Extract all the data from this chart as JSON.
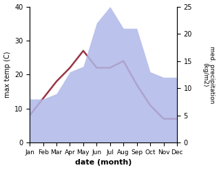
{
  "months": [
    "Jan",
    "Feb",
    "Mar",
    "Apr",
    "May",
    "Jun",
    "Jul",
    "Aug",
    "Sep",
    "Oct",
    "Nov",
    "Dec"
  ],
  "temperature": [
    8,
    13,
    18,
    22,
    27,
    22,
    22,
    24,
    17,
    11,
    7,
    7
  ],
  "precipitation": [
    8,
    8,
    9,
    13,
    14,
    22,
    25,
    21,
    21,
    13,
    12,
    12
  ],
  "temp_color": "#993344",
  "precip_color": "#b0b8e8",
  "background_color": "#ffffff",
  "xlabel": "date (month)",
  "ylabel_left": "max temp (C)",
  "ylabel_right": "med. precipitation\n(kg/m2)",
  "ylim_left": [
    0,
    40
  ],
  "ylim_right": [
    0,
    25
  ],
  "yticks_left": [
    0,
    10,
    20,
    30,
    40
  ],
  "yticks_right": [
    0,
    5,
    10,
    15,
    20,
    25
  ]
}
